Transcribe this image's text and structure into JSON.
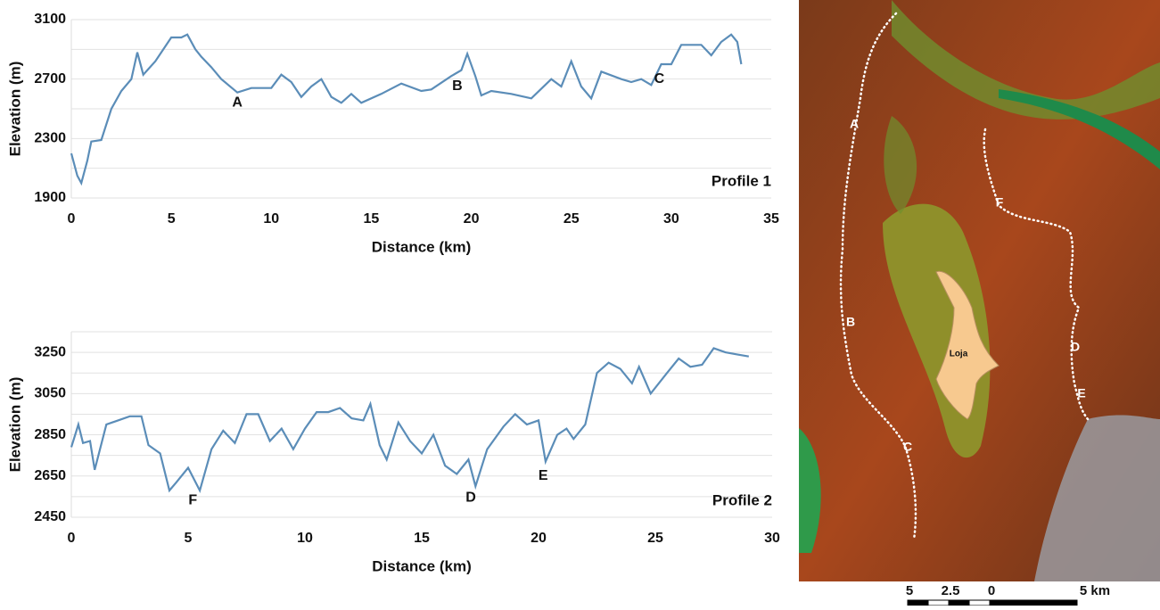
{
  "chart_data": [
    {
      "type": "line",
      "x_label": "Distance (km)",
      "y_label": "Elevation (m)",
      "label": "Profile 1",
      "color": "#5b8db8",
      "xlim": [
        0,
        35
      ],
      "xticks": [
        0,
        5,
        10,
        15,
        20,
        25,
        30,
        35
      ],
      "ylim": [
        1900,
        3100
      ],
      "yticks": [
        1900,
        2300,
        2700,
        3100
      ],
      "yminor": [
        2100,
        2500,
        2900
      ],
      "grid": true,
      "x": [
        0,
        0.3,
        0.5,
        0.8,
        1.0,
        1.5,
        2.0,
        2.5,
        3.0,
        3.3,
        3.6,
        4.2,
        5.0,
        5.5,
        5.8,
        6.2,
        6.5,
        7.0,
        7.5,
        8.3,
        9.0,
        10.0,
        10.5,
        11.0,
        11.5,
        12.0,
        12.5,
        13.0,
        13.5,
        14.0,
        14.5,
        15.5,
        16.5,
        17.5,
        18.0,
        19.0,
        19.5,
        19.8,
        20.2,
        20.5,
        21.0,
        22.0,
        23.0,
        24.0,
        24.5,
        25.0,
        25.5,
        26.0,
        26.5,
        27.5,
        28.0,
        28.5,
        29.0,
        29.5,
        30.0,
        30.5,
        31.5,
        32.0,
        32.5,
        33.0,
        33.3,
        33.5
      ],
      "values": [
        2200,
        2050,
        2000,
        2150,
        2280,
        2290,
        2500,
        2620,
        2700,
        2880,
        2730,
        2820,
        2980,
        2980,
        3000,
        2900,
        2850,
        2780,
        2700,
        2610,
        2640,
        2640,
        2730,
        2680,
        2580,
        2650,
        2700,
        2580,
        2540,
        2600,
        2540,
        2600,
        2670,
        2620,
        2630,
        2720,
        2760,
        2870,
        2720,
        2590,
        2620,
        2600,
        2570,
        2700,
        2650,
        2820,
        2650,
        2570,
        2750,
        2700,
        2680,
        2700,
        2660,
        2800,
        2800,
        2930,
        2930,
        2860,
        2950,
        3000,
        2950,
        2800
      ],
      "annotations": [
        {
          "text": "A",
          "x": 8.3,
          "y": 2540
        },
        {
          "text": "B",
          "x": 19.3,
          "y": 2650
        },
        {
          "text": "C",
          "x": 29.4,
          "y": 2700
        }
      ]
    },
    {
      "type": "line",
      "x_label": "Distance (km)",
      "y_label": "Elevation (m)",
      "label": "Profile 2",
      "color": "#5b8db8",
      "xlim": [
        0,
        30
      ],
      "xticks": [
        0,
        5,
        10,
        15,
        20,
        25,
        30
      ],
      "ylim": [
        2450,
        3350
      ],
      "yticks": [
        2450,
        2650,
        2850,
        3050,
        3250
      ],
      "yminor": [
        2550,
        2750,
        2950,
        3150,
        3350
      ],
      "grid": true,
      "x": [
        0,
        0.3,
        0.5,
        0.8,
        1.0,
        1.5,
        2.0,
        2.5,
        3.0,
        3.3,
        3.8,
        4.2,
        4.5,
        5.0,
        5.5,
        6.0,
        6.5,
        7.0,
        7.5,
        8.0,
        8.5,
        9.0,
        9.5,
        10.0,
        10.5,
        11.0,
        11.5,
        12.0,
        12.5,
        12.8,
        13.2,
        13.5,
        14.0,
        14.5,
        15.0,
        15.5,
        16.0,
        16.5,
        17.0,
        17.3,
        17.8,
        18.5,
        19.0,
        19.5,
        20.0,
        20.3,
        20.8,
        21.2,
        21.5,
        22.0,
        22.5,
        23.0,
        23.5,
        24.0,
        24.3,
        24.8,
        25.5,
        26.0,
        26.5,
        27.0,
        27.5,
        28.0,
        28.5,
        29.0
      ],
      "values": [
        2790,
        2900,
        2810,
        2820,
        2680,
        2900,
        2920,
        2940,
        2940,
        2800,
        2760,
        2580,
        2620,
        2690,
        2580,
        2780,
        2870,
        2810,
        2950,
        2950,
        2820,
        2880,
        2780,
        2880,
        2960,
        2960,
        2980,
        2930,
        2920,
        3000,
        2800,
        2730,
        2910,
        2820,
        2760,
        2850,
        2700,
        2660,
        2730,
        2600,
        2780,
        2890,
        2950,
        2900,
        2920,
        2720,
        2850,
        2880,
        2830,
        2900,
        3150,
        3200,
        3170,
        3100,
        3180,
        3050,
        3150,
        3220,
        3180,
        3190,
        3270,
        3250,
        3240,
        3230
      ],
      "annotations": [
        {
          "text": "F",
          "x": 5.2,
          "y": 2530
        },
        {
          "text": "D",
          "x": 17.1,
          "y": 2545
        },
        {
          "text": "E",
          "x": 20.2,
          "y": 2650
        }
      ]
    }
  ],
  "map": {
    "labels": [
      "A",
      "B",
      "C",
      "D",
      "E",
      "F"
    ],
    "city": "Loja",
    "scale": [
      "5",
      "2.5",
      "0",
      "5 km"
    ]
  }
}
